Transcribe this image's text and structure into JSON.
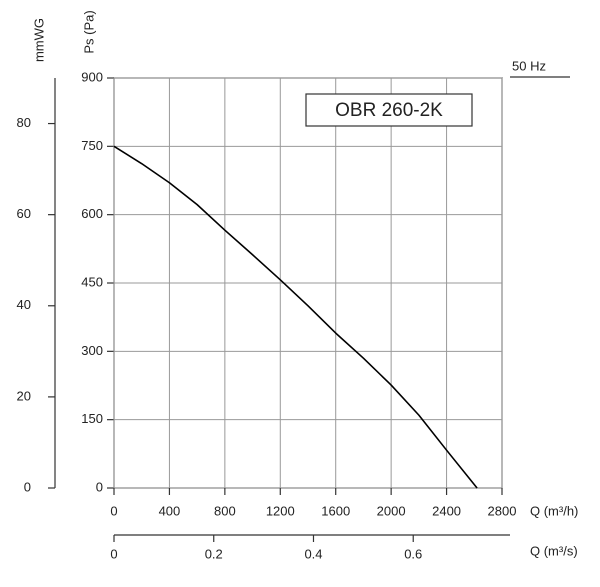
{
  "chart_data": {
    "type": "line",
    "title": "OBR 260-2K",
    "subtitle": "50 Hz",
    "x_label": "Q (m³/h)",
    "x2_label": "Q (m³/s)",
    "y_label": "Ps (Pa)",
    "y2_label": "mmWG",
    "x": [
      0,
      200,
      400,
      600,
      800,
      1000,
      1200,
      1400,
      1600,
      1800,
      2000,
      2200,
      2400,
      2620
    ],
    "values": [
      750,
      712,
      670,
      622,
      566,
      512,
      457,
      400,
      340,
      285,
      226,
      160,
      83,
      0
    ],
    "color": "#000000",
    "xlim": [
      0,
      2800
    ],
    "xticks": [
      0,
      400,
      800,
      1200,
      1600,
      2000,
      2400,
      2800
    ],
    "x2lim": [
      0,
      0.778
    ],
    "x2ticks": [
      0,
      0.2,
      0.4,
      0.6
    ],
    "ylim": [
      0,
      900
    ],
    "yticks": [
      0,
      150,
      300,
      450,
      600,
      750,
      900
    ],
    "y2lim": [
      0,
      90
    ],
    "y2ticks": [
      0,
      20,
      40,
      60,
      80
    ],
    "grid": true
  }
}
